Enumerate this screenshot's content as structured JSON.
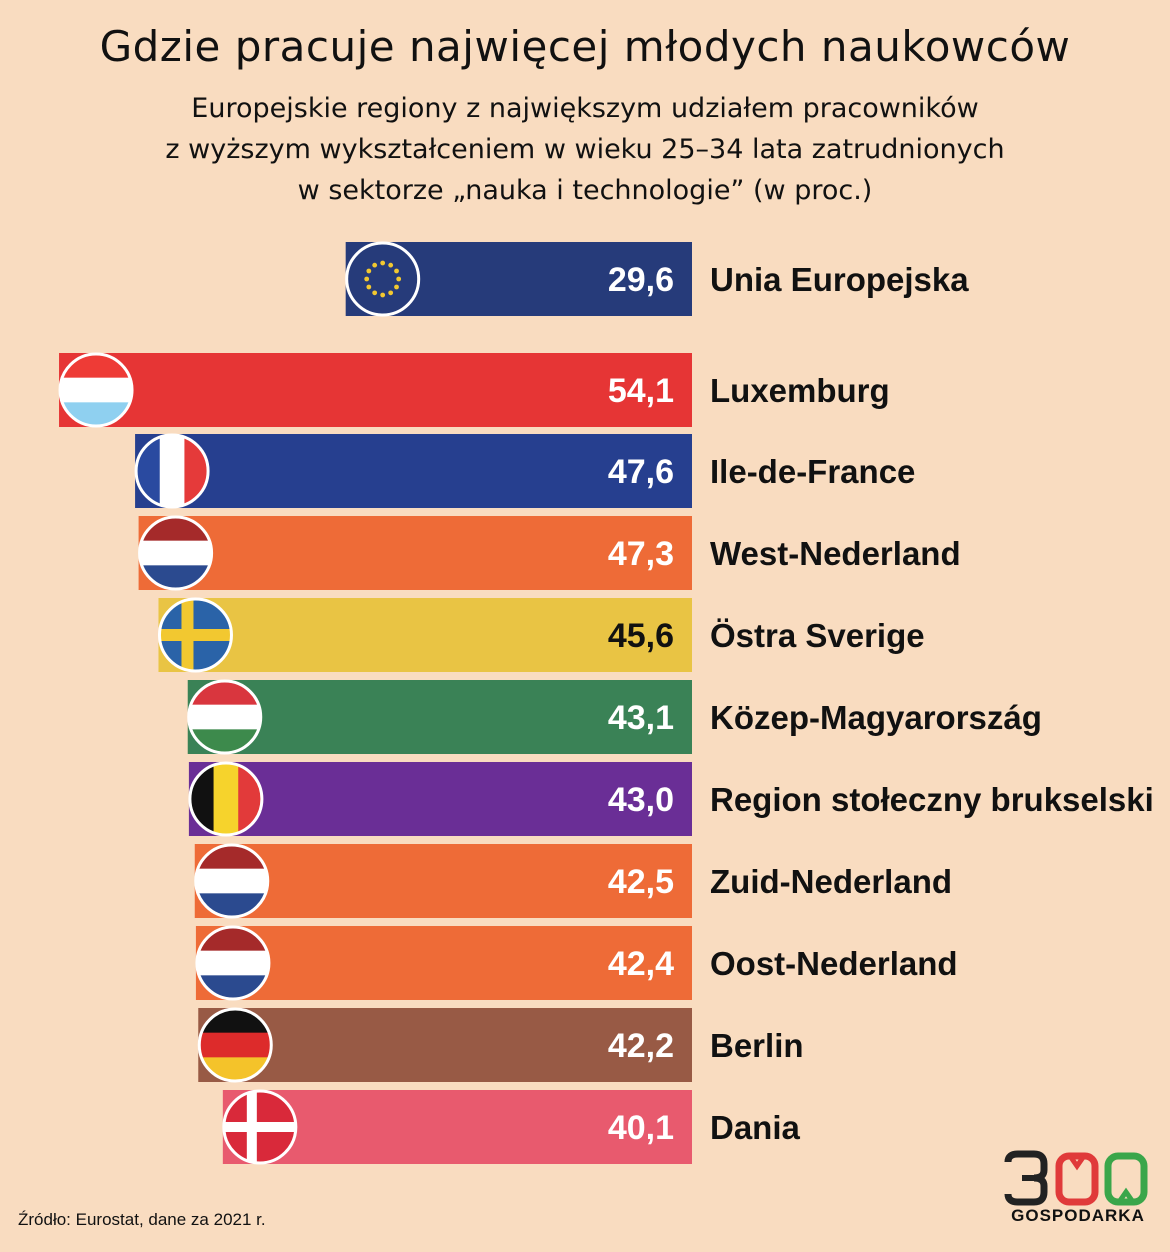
{
  "header": {
    "title": "Gdzie pracuje najwięcej młodych naukowców",
    "subtitle_lines": [
      "Europejskie regiony z największym udziałem pracowników",
      "z wyższym wykształceniem w wieku 25–34 lata zatrudnionych",
      "w sektorze „nauka i technologie” (w proc.)"
    ]
  },
  "chart_data": {
    "type": "bar",
    "orientation": "horizontal",
    "title": "Gdzie pracuje najwięcej młodych naukowców",
    "unit": "%",
    "reference": {
      "label": "Unia Europejska",
      "value": 29.6,
      "display": "29,6",
      "color": "#263b7a",
      "flag": "eu-flag-icon"
    },
    "categories": [
      "Luxemburg",
      "Ile-de-France",
      "West-Nederland",
      "Östra Sverige",
      "Közep-Magyarország",
      "Region stołeczny brukselski",
      "Zuid-Nederland",
      "Oost-Nederland",
      "Berlin",
      "Dania"
    ],
    "values": [
      54.1,
      47.6,
      47.3,
      45.6,
      43.1,
      43.0,
      42.5,
      42.4,
      42.2,
      40.1
    ],
    "display_values": [
      "54,1",
      "47,6",
      "47,3",
      "45,6",
      "43,1",
      "43,0",
      "42,5",
      "42,4",
      "42,2",
      "40,1"
    ],
    "colors": [
      "#e63535",
      "#263f8f",
      "#ee6b37",
      "#e9c444",
      "#3a8256",
      "#6a2e96",
      "#ee6b37",
      "#ee6b37",
      "#985a45",
      "#e85a6e"
    ],
    "value_text_colors": [
      "#ffffff",
      "#ffffff",
      "#ffffff",
      "#111111",
      "#ffffff",
      "#ffffff",
      "#ffffff",
      "#ffffff",
      "#ffffff",
      "#ffffff"
    ],
    "flags": [
      "luxembourg-flag-icon",
      "france-flag-icon",
      "netherlands-flag-icon",
      "sweden-flag-icon",
      "hungary-flag-icon",
      "belgium-flag-icon",
      "netherlands-flag-icon",
      "netherlands-flag-icon",
      "germany-flag-icon",
      "denmark-flag-icon"
    ]
  },
  "footer": {
    "source": "Źródło: Eurostat, dane za 2021 r.",
    "logo_number": "300",
    "logo_text": "GOSPODARKA"
  }
}
